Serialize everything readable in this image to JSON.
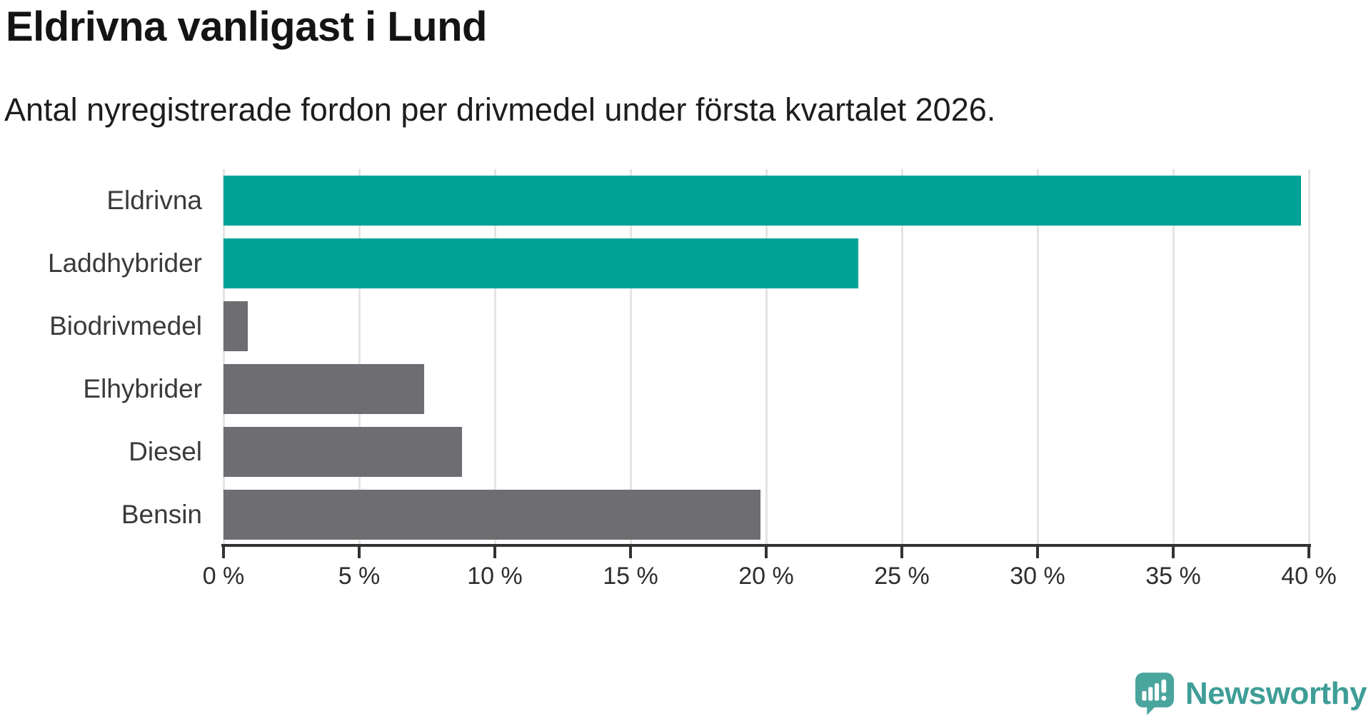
{
  "header": {
    "title": "Eldrivna vanligast i Lund",
    "subtitle": "Antal nyregistrerade fordon per drivmedel under första kvartalet 2026."
  },
  "chart_data": {
    "type": "bar",
    "orientation": "horizontal",
    "title": "Eldrivna vanligast i Lund",
    "subtitle": "Antal nyregistrerade fordon per drivmedel under första kvartalet 2026.",
    "categories": [
      "Eldrivna",
      "Laddhybrider",
      "Biodrivmedel",
      "Elhybrider",
      "Diesel",
      "Bensin"
    ],
    "values": [
      39.7,
      23.4,
      0.9,
      7.4,
      8.8,
      19.8
    ],
    "unit": "%",
    "xlim": [
      0,
      40
    ],
    "xticks": [
      0,
      5,
      10,
      15,
      20,
      25,
      30,
      35,
      40
    ],
    "xtick_labels": [
      "0 %",
      "5 %",
      "10 %",
      "15 %",
      "20 %",
      "25 %",
      "30 %",
      "35 %",
      "40 %"
    ],
    "grid": true,
    "legend": "none",
    "bar_colors": [
      "#00a296",
      "#00a296",
      "#6d6d72",
      "#6d6d72",
      "#6d6d72",
      "#6d6d72"
    ],
    "highlight_color": "#00a296",
    "default_color": "#6d6d72",
    "gridline_color": "#e4e4e4",
    "axis_color": "#333333"
  },
  "branding": {
    "logo_text": "Newsworthy",
    "logo_text_color": "#3f9e97",
    "logo_icon": "speech-bubble-bar-chart-icon",
    "logo_icon_color": "#4aa59d"
  }
}
